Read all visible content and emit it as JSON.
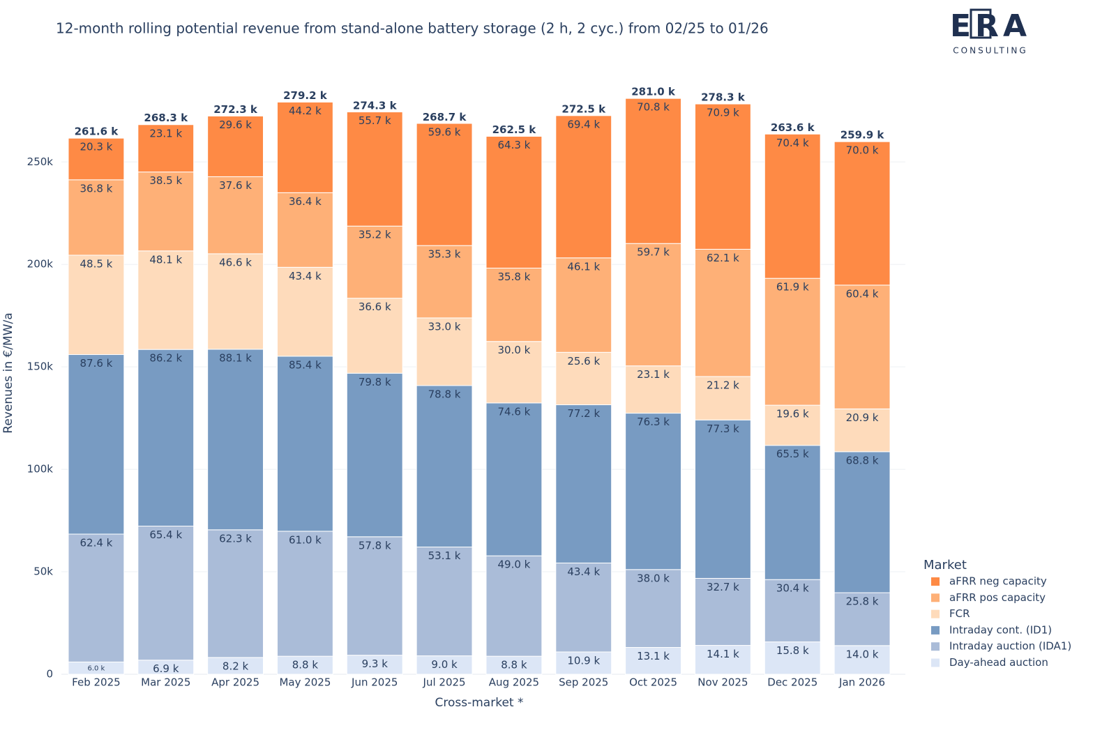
{
  "chart_data": {
    "type": "stacked_bar",
    "title": "12-month rolling potential revenue from stand-alone battery storage (2 h, 2 cyc.) from 02/25 to 01/26",
    "logo": {
      "mark": "ERA",
      "subtitle": "CONSULTING"
    },
    "x_label": "Cross-market *",
    "y_label": "Revenues in €/MW/a",
    "legend_title": "Market",
    "legend_position": "right",
    "grid": true,
    "categories": [
      "Feb 2025",
      "Mar 2025",
      "Apr 2025",
      "May 2025",
      "Jun 2025",
      "Jul 2025",
      "Aug 2025",
      "Sep 2025",
      "Oct 2025",
      "Nov 2025",
      "Dec 2025",
      "Jan 2026"
    ],
    "ylim": [
      0,
      295000
    ],
    "yticks": [
      0,
      {
        "value": 50000,
        "label": "50k"
      },
      {
        "value": 100000,
        "label": "100k"
      },
      {
        "value": 150000,
        "label": "150k"
      },
      {
        "value": 200000,
        "label": "200k"
      },
      {
        "value": 250000,
        "label": "250k"
      }
    ],
    "series": [
      {
        "name": "Day-ahead auction",
        "color": "#dce6f6",
        "values": [
          6000,
          6900,
          8200,
          8800,
          9300,
          9000,
          8800,
          10900,
          13100,
          14100,
          15800,
          14000
        ],
        "value_labels": [
          "6.0 k",
          "6.9 k",
          "8.2 k",
          "8.8 k",
          "9.3 k",
          "9.0 k",
          "8.8 k",
          "10.9 k",
          "13.1 k",
          "14.1 k",
          "15.8 k",
          "14.0 k"
        ]
      },
      {
        "name": "Intraday auction (IDA1)",
        "color": "#aabcd8",
        "values": [
          62400,
          65400,
          62300,
          61000,
          57800,
          53100,
          49000,
          43400,
          38000,
          32700,
          30400,
          25800
        ],
        "value_labels": [
          "62.4 k",
          "65.4 k",
          "62.3 k",
          "61.0 k",
          "57.8 k",
          "53.1 k",
          "49.0 k",
          "43.4 k",
          "38.0 k",
          "32.7 k",
          "30.4 k",
          "25.8 k"
        ]
      },
      {
        "name": "Intraday cont. (ID1)",
        "color": "#789bc2",
        "values": [
          87600,
          86200,
          88100,
          85400,
          79800,
          78800,
          74600,
          77200,
          76300,
          77300,
          65500,
          68800
        ],
        "value_labels": [
          "87.6 k",
          "86.2 k",
          "88.1 k",
          "85.4 k",
          "79.8 k",
          "78.8 k",
          "74.6 k",
          "77.2 k",
          "76.3 k",
          "77.3 k",
          "65.5 k",
          "68.8 k"
        ]
      },
      {
        "name": "FCR",
        "color": "#fedbbb",
        "values": [
          48500,
          48100,
          46600,
          43400,
          36600,
          33000,
          30000,
          25600,
          23100,
          21200,
          19600,
          20900
        ],
        "value_labels": [
          "48.5 k",
          "48.1 k",
          "46.6 k",
          "43.4 k",
          "36.6 k",
          "33.0 k",
          "30.0 k",
          "25.6 k",
          "23.1 k",
          "21.2 k",
          "19.6 k",
          "20.9 k"
        ]
      },
      {
        "name": "aFRR pos capacity",
        "color": "#feb077",
        "values": [
          36800,
          38500,
          37600,
          36400,
          35200,
          35300,
          35800,
          46100,
          59700,
          62100,
          61900,
          60400
        ],
        "value_labels": [
          "36.8 k",
          "38.5 k",
          "37.6 k",
          "36.4 k",
          "35.2 k",
          "35.3 k",
          "35.8 k",
          "46.1 k",
          "59.7 k",
          "62.1 k",
          "61.9 k",
          "60.4 k"
        ]
      },
      {
        "name": "aFRR neg capacity",
        "color": "#fe8a45",
        "values": [
          20300,
          23100,
          29600,
          44200,
          55700,
          59600,
          64300,
          69400,
          70800,
          70900,
          70400,
          70000
        ],
        "value_labels": [
          "20.3 k",
          "23.1 k",
          "29.6 k",
          "44.2 k",
          "55.7 k",
          "59.6 k",
          "64.3 k",
          "69.4 k",
          "70.8 k",
          "70.9 k",
          "70.4 k",
          "70.0 k"
        ]
      }
    ],
    "totals": [
      261600,
      268300,
      272300,
      279200,
      274300,
      268700,
      262500,
      272500,
      281000,
      278300,
      263600,
      259900
    ],
    "total_labels": [
      "261.6 k",
      "268.3 k",
      "272.3 k",
      "279.2 k",
      "274.3 k",
      "268.7 k",
      "262.5 k",
      "272.5 k",
      "281.0 k",
      "278.3 k",
      "263.6 k",
      "259.9 k"
    ]
  }
}
